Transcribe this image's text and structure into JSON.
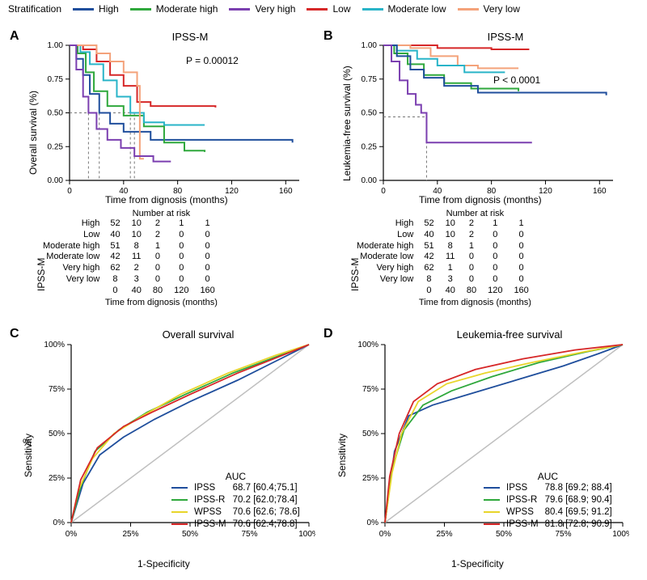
{
  "colors": {
    "High": "#1f4e9c",
    "Moderate high": "#2fa83c",
    "Very high": "#7b3fb0",
    "Low": "#d62728",
    "Moderate low": "#29b4c8",
    "Very low": "#f4a27a",
    "IPSS": "#1f4e9c",
    "IPSS-R": "#2fa83c",
    "WPSS": "#e8d52a",
    "IPSS-M": "#d62728",
    "axis": "#000000",
    "ref_gray": "#bfbfbf",
    "guide_dash": "#777777"
  },
  "legend_title": "Stratification",
  "strat_order": [
    "High",
    "Moderate high",
    "Very high",
    "Low",
    "Moderate low",
    "Very low"
  ],
  "panels": {
    "A": {
      "label": "A",
      "title": "IPSS-M",
      "xlabel": "Time from dignosis (months)",
      "ylabel": "Overall survival (%)",
      "pvalue": "P = 0.00012",
      "xlim": [
        0,
        170
      ],
      "xticks": [
        0,
        40,
        80,
        120,
        160
      ],
      "ylim": [
        0,
        1.0
      ],
      "yticks": [
        0.0,
        0.25,
        0.5,
        0.75,
        1.0
      ],
      "median_line": 0.5,
      "median_drops_x": [
        14,
        22,
        45,
        48
      ],
      "km": {
        "High": [
          [
            0,
            1.0
          ],
          [
            5,
            0.9
          ],
          [
            10,
            0.78
          ],
          [
            15,
            0.64
          ],
          [
            22,
            0.5
          ],
          [
            30,
            0.42
          ],
          [
            40,
            0.36
          ],
          [
            60,
            0.3
          ],
          [
            165,
            0.28
          ]
        ],
        "Moderate high": [
          [
            0,
            1.0
          ],
          [
            6,
            0.94
          ],
          [
            12,
            0.8
          ],
          [
            18,
            0.66
          ],
          [
            28,
            0.55
          ],
          [
            40,
            0.48
          ],
          [
            55,
            0.4
          ],
          [
            70,
            0.28
          ],
          [
            85,
            0.22
          ],
          [
            100,
            0.21
          ]
        ],
        "Moderate low": [
          [
            0,
            1.0
          ],
          [
            8,
            0.95
          ],
          [
            15,
            0.86
          ],
          [
            25,
            0.74
          ],
          [
            35,
            0.62
          ],
          [
            45,
            0.5
          ],
          [
            55,
            0.43
          ],
          [
            70,
            0.41
          ],
          [
            100,
            0.41
          ]
        ],
        "Low": [
          [
            0,
            1.0
          ],
          [
            10,
            0.97
          ],
          [
            20,
            0.88
          ],
          [
            30,
            0.78
          ],
          [
            40,
            0.7
          ],
          [
            50,
            0.58
          ],
          [
            60,
            0.55
          ],
          [
            108,
            0.54
          ]
        ],
        "Very low": [
          [
            0,
            1.0
          ],
          [
            10,
            1.0
          ],
          [
            20,
            0.94
          ],
          [
            30,
            0.88
          ],
          [
            40,
            0.8
          ],
          [
            50,
            0.7
          ],
          [
            52,
            0.16
          ],
          [
            55,
            0.16
          ]
        ],
        "Very high": [
          [
            0,
            1.0
          ],
          [
            5,
            0.82
          ],
          [
            10,
            0.62
          ],
          [
            14,
            0.5
          ],
          [
            20,
            0.38
          ],
          [
            28,
            0.3
          ],
          [
            38,
            0.24
          ],
          [
            48,
            0.18
          ],
          [
            62,
            0.14
          ],
          [
            75,
            0.14
          ]
        ]
      }
    },
    "B": {
      "label": "B",
      "title": "IPSS-M",
      "xlabel": "Time from dignosis (months)",
      "ylabel": "Leukemia-free survival (%)",
      "pvalue": "P < 0.0001",
      "xlim": [
        0,
        170
      ],
      "xticks": [
        0,
        40,
        80,
        120,
        160
      ],
      "ylim": [
        0,
        1.0
      ],
      "yticks": [
        0.0,
        0.25,
        0.5,
        0.75,
        1.0
      ],
      "median_line": 0.47,
      "median_drops_x": [
        32
      ],
      "km": {
        "Low": [
          [
            0,
            1.0
          ],
          [
            20,
            1.0
          ],
          [
            40,
            0.98
          ],
          [
            80,
            0.97
          ],
          [
            108,
            0.97
          ]
        ],
        "Very low": [
          [
            0,
            1.0
          ],
          [
            20,
            0.98
          ],
          [
            35,
            0.92
          ],
          [
            55,
            0.85
          ],
          [
            70,
            0.83
          ],
          [
            100,
            0.83
          ]
        ],
        "Moderate low": [
          [
            0,
            1.0
          ],
          [
            10,
            0.96
          ],
          [
            25,
            0.9
          ],
          [
            40,
            0.85
          ],
          [
            60,
            0.8
          ],
          [
            90,
            0.8
          ]
        ],
        "Moderate high": [
          [
            0,
            1.0
          ],
          [
            8,
            0.94
          ],
          [
            18,
            0.86
          ],
          [
            30,
            0.78
          ],
          [
            45,
            0.72
          ],
          [
            65,
            0.68
          ],
          [
            100,
            0.66
          ]
        ],
        "High": [
          [
            0,
            1.0
          ],
          [
            10,
            0.92
          ],
          [
            20,
            0.82
          ],
          [
            30,
            0.76
          ],
          [
            45,
            0.7
          ],
          [
            70,
            0.65
          ],
          [
            165,
            0.63
          ]
        ],
        "Very high": [
          [
            0,
            1.0
          ],
          [
            6,
            0.88
          ],
          [
            12,
            0.74
          ],
          [
            18,
            0.64
          ],
          [
            24,
            0.56
          ],
          [
            28,
            0.5
          ],
          [
            32,
            0.28
          ],
          [
            110,
            0.28
          ]
        ]
      }
    },
    "C": {
      "label": "C",
      "title": "Overall survival",
      "xlabel": "1-Specificity",
      "ylabel": "Sensitivity",
      "xlim": [
        0,
        100
      ],
      "xticks": [
        0,
        25,
        50,
        75,
        100
      ],
      "ylim": [
        0,
        100
      ],
      "yticks": [
        0,
        25,
        50,
        75,
        100
      ],
      "roc": {
        "IPSS": [
          [
            0,
            0
          ],
          [
            5,
            22
          ],
          [
            12,
            38
          ],
          [
            22,
            48
          ],
          [
            35,
            58
          ],
          [
            50,
            68
          ],
          [
            70,
            80
          ],
          [
            85,
            90
          ],
          [
            100,
            100
          ]
        ],
        "IPSS-R": [
          [
            0,
            0
          ],
          [
            4,
            20
          ],
          [
            10,
            40
          ],
          [
            20,
            52
          ],
          [
            32,
            62
          ],
          [
            48,
            72
          ],
          [
            68,
            84
          ],
          [
            86,
            93
          ],
          [
            100,
            100
          ]
        ],
        "WPSS": [
          [
            0,
            0
          ],
          [
            3,
            18
          ],
          [
            9,
            36
          ],
          [
            18,
            50
          ],
          [
            30,
            60
          ],
          [
            46,
            72
          ],
          [
            66,
            84
          ],
          [
            86,
            94
          ],
          [
            100,
            100
          ]
        ],
        "IPSS-M": [
          [
            0,
            0
          ],
          [
            4,
            24
          ],
          [
            11,
            42
          ],
          [
            22,
            54
          ],
          [
            34,
            62
          ],
          [
            50,
            72
          ],
          [
            70,
            84
          ],
          [
            87,
            93
          ],
          [
            100,
            100
          ]
        ]
      },
      "auc": [
        [
          "IPSS",
          "68.7 [60.4;75.1]"
        ],
        [
          "IPSS-R",
          "70.2 [62.0;78.4]"
        ],
        [
          "WPSS",
          "70.6 [62.6; 78.6]"
        ],
        [
          "IPSS-M",
          "70.6 [62.4;78.8]"
        ]
      ]
    },
    "D": {
      "label": "D",
      "title": "Leukemia-free survival",
      "xlabel": "1-Specificity",
      "ylabel": "Sensitivity",
      "xlim": [
        0,
        100
      ],
      "xticks": [
        0,
        25,
        50,
        75,
        100
      ],
      "ylim": [
        0,
        100
      ],
      "yticks": [
        0,
        25,
        50,
        75,
        100
      ],
      "roc": {
        "IPSS": [
          [
            0,
            0
          ],
          [
            4,
            40
          ],
          [
            10,
            60
          ],
          [
            20,
            66
          ],
          [
            35,
            72
          ],
          [
            55,
            80
          ],
          [
            75,
            88
          ],
          [
            90,
            95
          ],
          [
            100,
            100
          ]
        ],
        "IPSS-R": [
          [
            0,
            0
          ],
          [
            3,
            30
          ],
          [
            8,
            52
          ],
          [
            16,
            66
          ],
          [
            28,
            74
          ],
          [
            45,
            82
          ],
          [
            65,
            90
          ],
          [
            85,
            96
          ],
          [
            100,
            100
          ]
        ],
        "WPSS": [
          [
            0,
            0
          ],
          [
            3,
            28
          ],
          [
            7,
            50
          ],
          [
            14,
            68
          ],
          [
            26,
            78
          ],
          [
            42,
            84
          ],
          [
            62,
            90
          ],
          [
            84,
            96
          ],
          [
            100,
            100
          ]
        ],
        "IPSS-M": [
          [
            0,
            0
          ],
          [
            2,
            26
          ],
          [
            6,
            50
          ],
          [
            12,
            68
          ],
          [
            22,
            78
          ],
          [
            38,
            86
          ],
          [
            58,
            92
          ],
          [
            80,
            97
          ],
          [
            100,
            100
          ]
        ]
      },
      "auc": [
        [
          "IPSS",
          "78.8 [69.2; 88.4]"
        ],
        [
          "IPSS-R",
          "79.6 [68.9; 90.4]"
        ],
        [
          "WPSS",
          "80.4 [69.5; 91.2]"
        ],
        [
          "IPSS-M",
          "81.8 [72.8; 90.9]"
        ]
      ]
    }
  },
  "risk_table": {
    "title": "Number at risk",
    "xlabel": "Time from dignosis (months)",
    "times": [
      0,
      40,
      80,
      120,
      160
    ],
    "rows_order": [
      "High",
      "Low",
      "Moderate high",
      "Moderate low",
      "Very high",
      "Very low"
    ],
    "A": {
      "High": [
        52,
        10,
        2,
        1,
        1
      ],
      "Low": [
        40,
        10,
        2,
        0,
        0
      ],
      "Moderate high": [
        51,
        8,
        1,
        0,
        0
      ],
      "Moderate low": [
        42,
        11,
        0,
        0,
        0
      ],
      "Very high": [
        62,
        2,
        0,
        0,
        0
      ],
      "Very low": [
        8,
        3,
        0,
        0,
        0
      ]
    },
    "B": {
      "High": [
        52,
        10,
        2,
        1,
        1
      ],
      "Low": [
        40,
        10,
        2,
        0,
        0
      ],
      "Moderate high": [
        51,
        8,
        1,
        0,
        0
      ],
      "Moderate low": [
        42,
        11,
        0,
        0,
        0
      ],
      "Very high": [
        62,
        1,
        0,
        0,
        0
      ],
      "Very low": [
        8,
        3,
        0,
        0,
        0
      ]
    },
    "ylabel": "IPSS-M"
  },
  "fontsize": {
    "title": 13,
    "axis_label": 12,
    "tick": 10,
    "panel_label": 16,
    "legend": 12,
    "risk": 11,
    "auc": 11.5
  }
}
